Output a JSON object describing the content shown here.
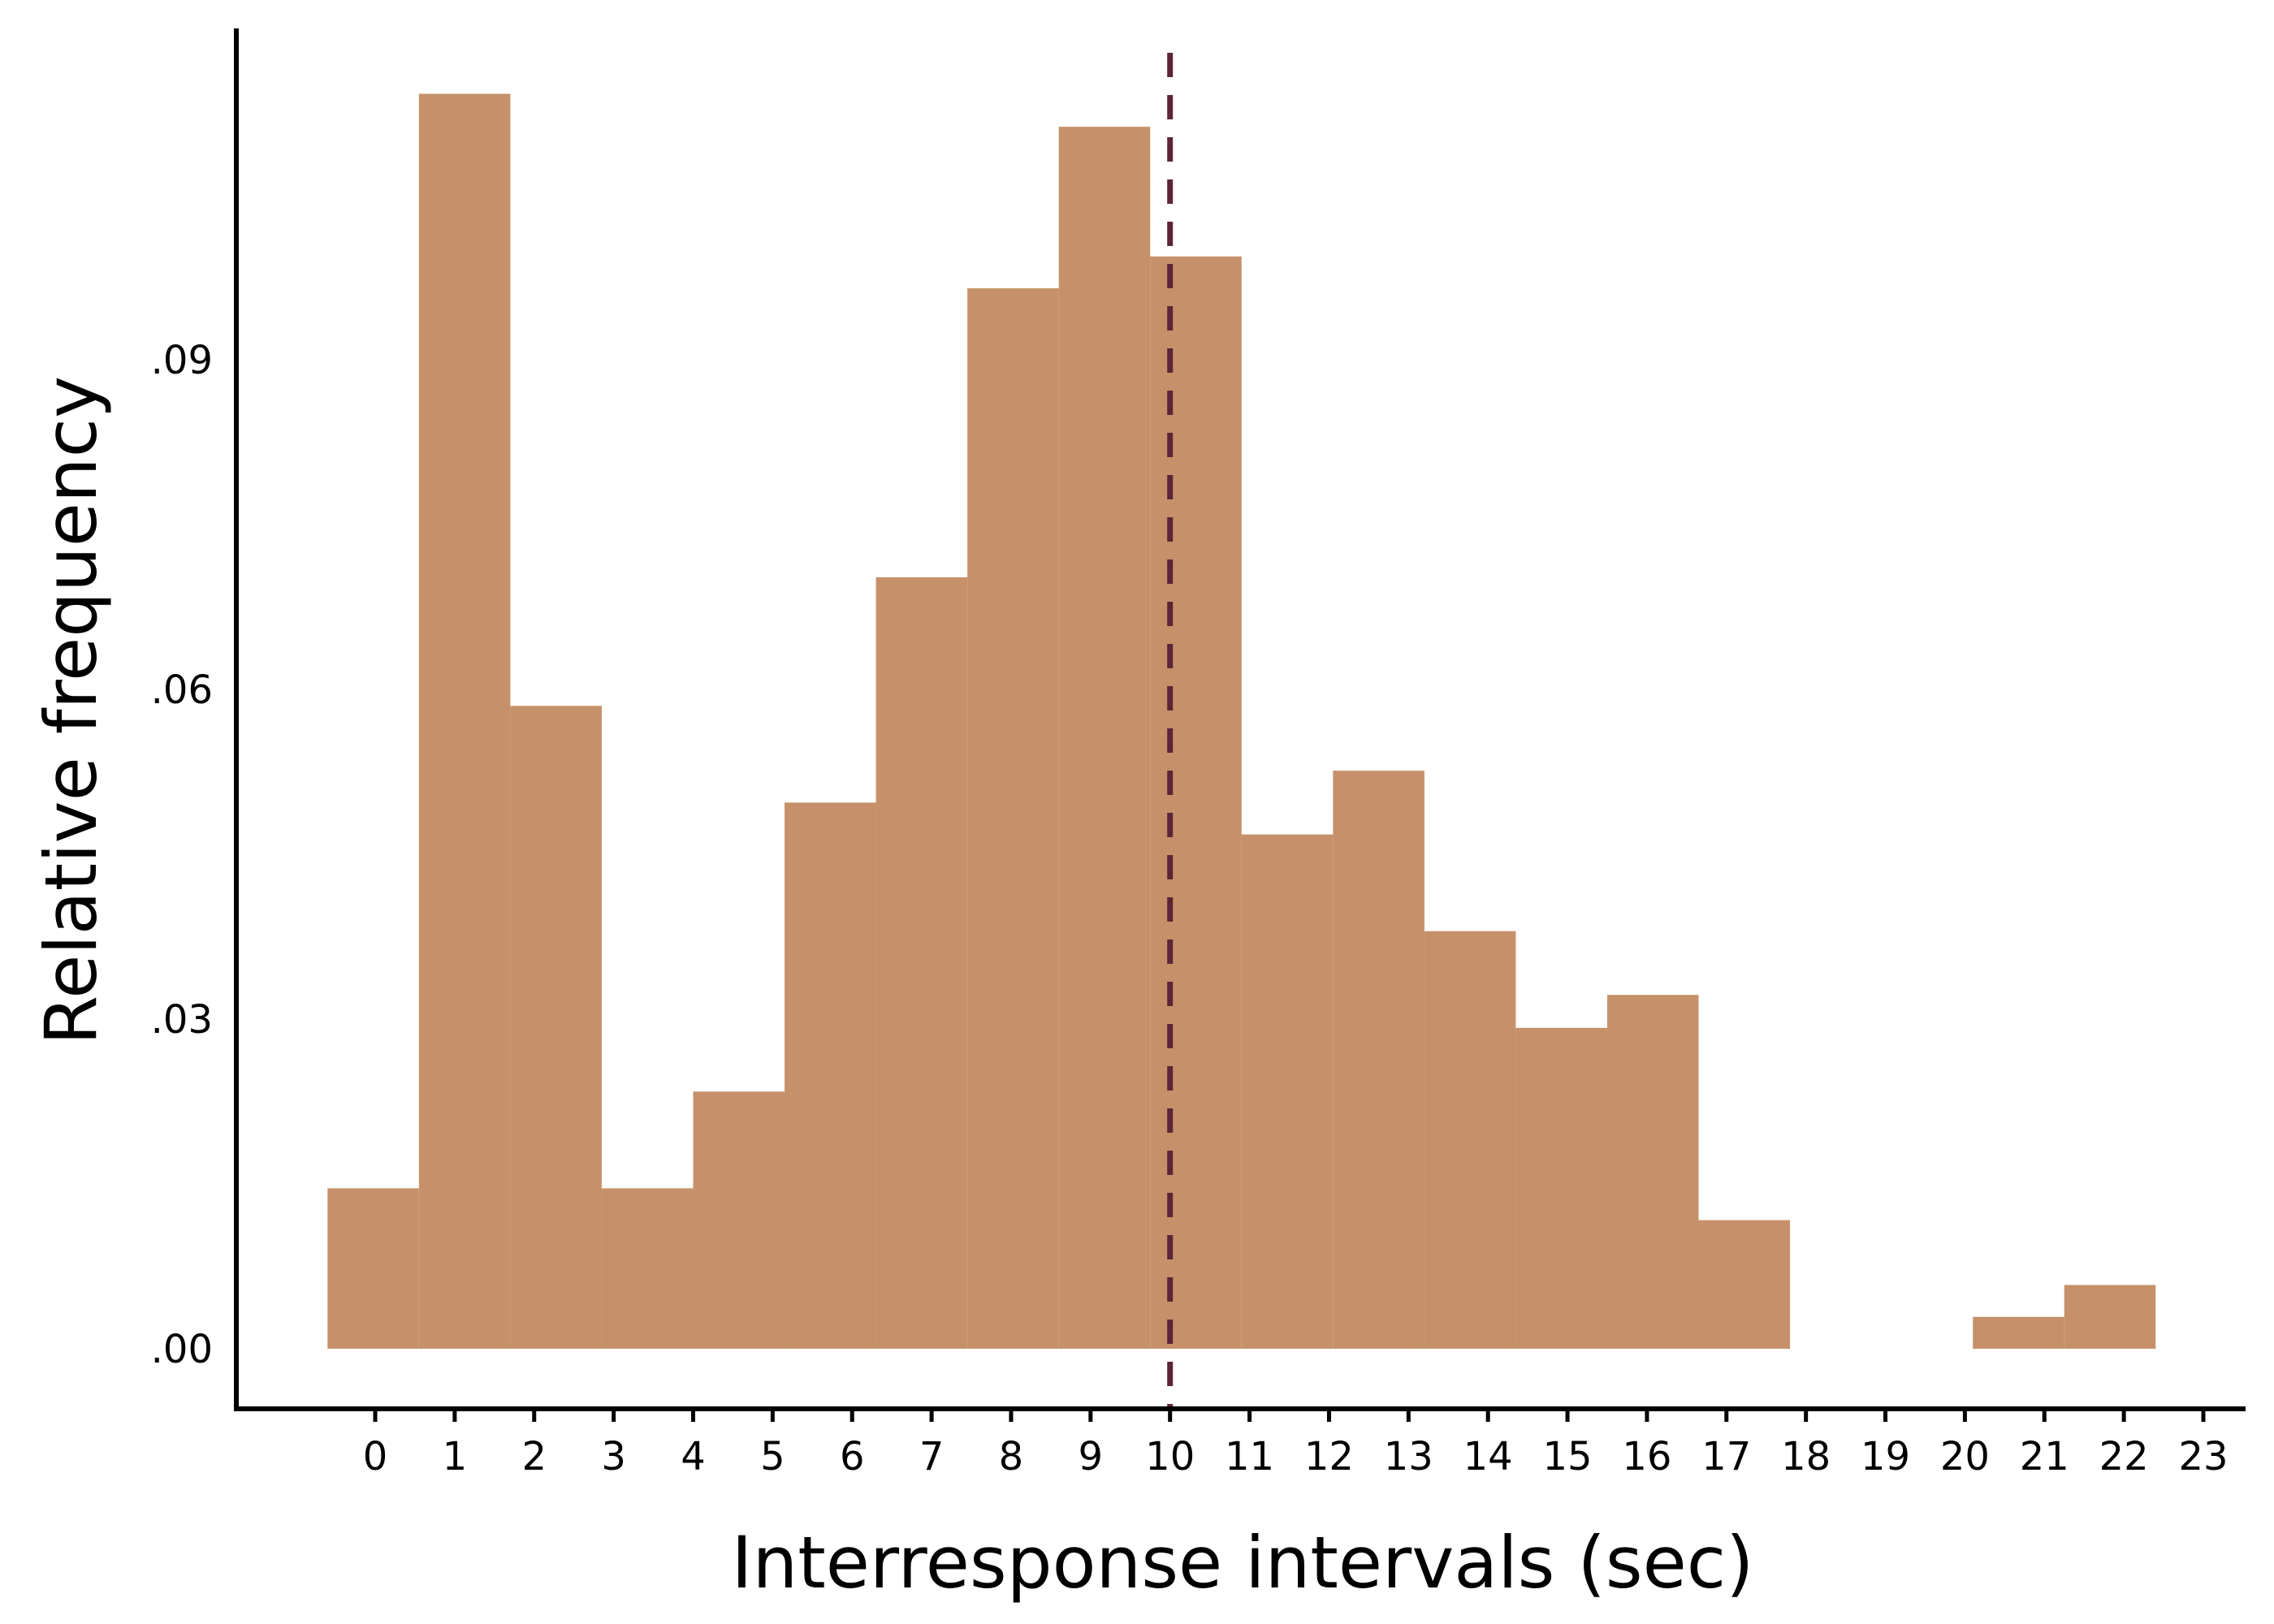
{
  "chart_data": {
    "type": "bar",
    "xlabel": "Interresponse intervals (sec)",
    "ylabel": "Relative frequency",
    "x_ticks": [
      "0",
      "1",
      "2",
      "3",
      "4",
      "5",
      "6",
      "7",
      "8",
      "9",
      "10",
      "11",
      "12",
      "13",
      "14",
      "15",
      "16",
      "17",
      "18",
      "19",
      "20",
      "21",
      "22",
      "23"
    ],
    "y_ticks": [
      ".00",
      ".03",
      ".06",
      ".09"
    ],
    "y_tick_values": [
      0,
      0.03,
      0.06,
      0.09
    ],
    "xlim": [
      -1,
      23
    ],
    "ylim": [
      -0.0055,
      0.12
    ],
    "grid": false,
    "bins": [
      {
        "start": -0.6,
        "end": 0.55,
        "value": 0.0146
      },
      {
        "start": 0.55,
        "end": 1.7,
        "value": 0.1142
      },
      {
        "start": 1.7,
        "end": 2.85,
        "value": 0.0585
      },
      {
        "start": 2.85,
        "end": 4.0,
        "value": 0.0146
      },
      {
        "start": 4.0,
        "end": 5.15,
        "value": 0.0234
      },
      {
        "start": 5.15,
        "end": 6.3,
        "value": 0.0497
      },
      {
        "start": 6.3,
        "end": 7.45,
        "value": 0.0702
      },
      {
        "start": 7.45,
        "end": 8.6,
        "value": 0.0965
      },
      {
        "start": 8.6,
        "end": 9.75,
        "value": 0.1112
      },
      {
        "start": 9.75,
        "end": 10.9,
        "value": 0.0994
      },
      {
        "start": 10.9,
        "end": 12.05,
        "value": 0.0468
      },
      {
        "start": 12.05,
        "end": 13.2,
        "value": 0.0526
      },
      {
        "start": 13.2,
        "end": 14.35,
        "value": 0.038
      },
      {
        "start": 14.35,
        "end": 15.5,
        "value": 0.0292
      },
      {
        "start": 15.5,
        "end": 16.65,
        "value": 0.0322
      },
      {
        "start": 16.65,
        "end": 17.8,
        "value": 0.0117
      },
      {
        "start": 17.8,
        "end": 18.95,
        "value": 0
      },
      {
        "start": 18.95,
        "end": 20.1,
        "value": 0
      },
      {
        "start": 20.1,
        "end": 21.25,
        "value": 0.0029
      },
      {
        "start": 21.25,
        "end": 22.4,
        "value": 0.0058
      }
    ],
    "reference_line": {
      "x": 10,
      "style": "dashed"
    },
    "colors": {
      "bar": "#c6916a",
      "reference_line": "#5c2536",
      "axis": "#000000"
    }
  }
}
